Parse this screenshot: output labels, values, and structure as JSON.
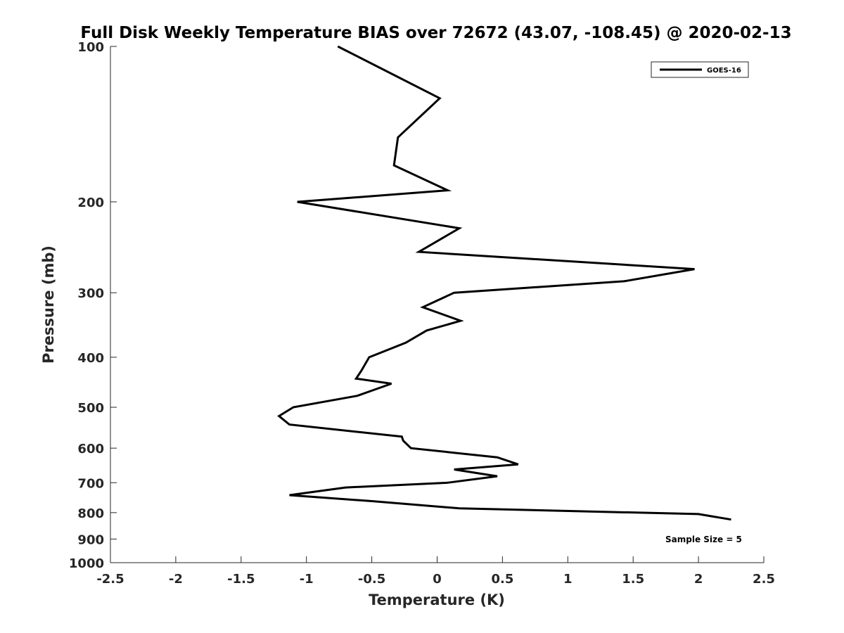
{
  "chart_data": {
    "type": "line",
    "title": "Full Disk Weekly Temperature BIAS over 72672 (43.07, -108.45) @ 2020-02-13",
    "xlabel": "Temperature (K)",
    "ylabel": "Pressure (mb)",
    "xlim": [
      -2.5,
      2.5
    ],
    "ylim": [
      100,
      1000
    ],
    "y_scale": "log",
    "y_reversed": true,
    "x_ticks": [
      -2.5,
      -2,
      -1.5,
      -1,
      -0.5,
      0,
      0.5,
      1,
      1.5,
      2,
      2.5
    ],
    "x_tick_labels": [
      "-2.5",
      "-2",
      "-1.5",
      "-1",
      "-0.5",
      "0",
      "0.5",
      "1",
      "1.5",
      "2",
      "2.5"
    ],
    "y_ticks": [
      100,
      200,
      300,
      400,
      500,
      600,
      700,
      800,
      900,
      1000
    ],
    "y_tick_labels": [
      "100",
      "200",
      "300",
      "400",
      "500",
      "600",
      "700",
      "800",
      "900",
      "1000"
    ],
    "grid": false,
    "legend_position": "top-right",
    "series": [
      {
        "name": "GOES-16",
        "color": "#000000",
        "points": [
          [
            -0.76,
            100
          ],
          [
            0.02,
            126
          ],
          [
            -0.3,
            150
          ],
          [
            -0.33,
            170
          ],
          [
            0.08,
            190
          ],
          [
            -1.07,
            200
          ],
          [
            0.17,
            225
          ],
          [
            -0.14,
            250
          ],
          [
            1.97,
            270
          ],
          [
            1.43,
            285
          ],
          [
            0.13,
            300
          ],
          [
            -0.11,
            320
          ],
          [
            0.18,
            340
          ],
          [
            -0.08,
            355
          ],
          [
            -0.24,
            375
          ],
          [
            -0.52,
            400
          ],
          [
            -0.58,
            425
          ],
          [
            -0.62,
            440
          ],
          [
            -0.35,
            450
          ],
          [
            -0.61,
            475
          ],
          [
            -1.1,
            500
          ],
          [
            -1.21,
            520
          ],
          [
            -1.13,
            540
          ],
          [
            -0.27,
            570
          ],
          [
            -0.26,
            580
          ],
          [
            -0.2,
            600
          ],
          [
            0.46,
            625
          ],
          [
            0.62,
            645
          ],
          [
            0.13,
            660
          ],
          [
            0.46,
            680
          ],
          [
            0.08,
            700
          ],
          [
            -0.7,
            715
          ],
          [
            -1.13,
            740
          ],
          [
            -0.5,
            760
          ],
          [
            0.17,
            785
          ],
          [
            2.0,
            805
          ],
          [
            2.25,
            825
          ]
        ]
      }
    ],
    "annotations": [
      {
        "text": "Sample Size = 5"
      }
    ]
  }
}
